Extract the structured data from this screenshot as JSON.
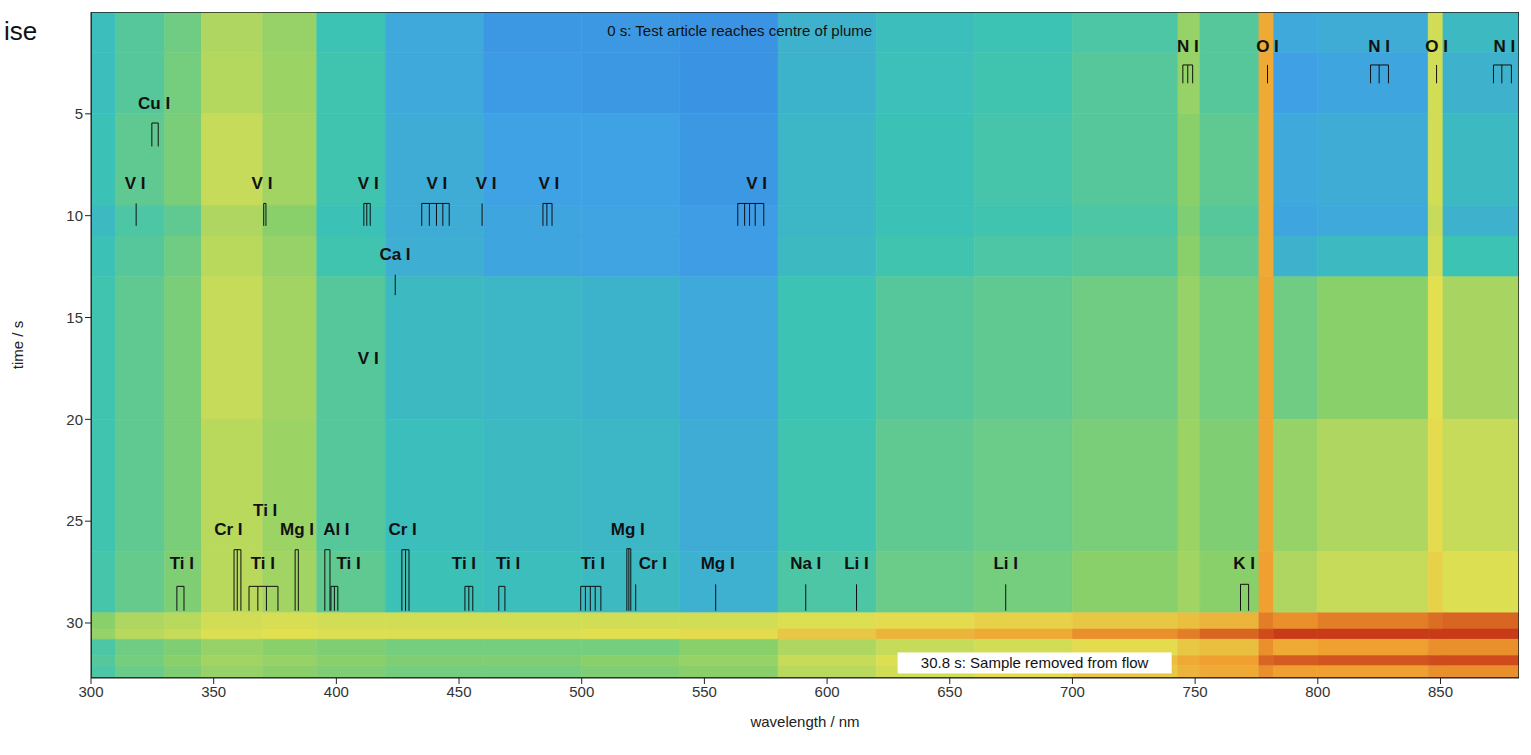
{
  "page_text": "ise",
  "chart_data": {
    "type": "heatmap",
    "x_label": "wavelength / nm",
    "y_label": "time / s",
    "xlim": [
      300,
      882
    ],
    "xticks": [
      300,
      350,
      400,
      450,
      500,
      550,
      600,
      650,
      700,
      750,
      800,
      850
    ],
    "ylim": [
      0,
      32.7
    ],
    "yticks": [
      5,
      10,
      15,
      20,
      25,
      30
    ],
    "color_range": [
      0,
      1
    ],
    "x_bins": [
      300,
      310,
      330,
      345,
      370,
      392,
      420,
      460,
      500,
      540,
      580,
      620,
      660,
      700,
      743,
      752,
      776,
      782,
      800,
      845,
      851,
      882
    ],
    "y_bins": [
      0,
      2,
      5,
      9.5,
      11,
      13,
      20,
      26.5,
      29.5,
      30.3,
      30.8,
      31.6,
      32.1,
      32.7
    ],
    "cells": [
      [
        0.42,
        0.5,
        0.55,
        0.66,
        0.62,
        0.45,
        0.3,
        0.22,
        0.22,
        0.2,
        0.35,
        0.42,
        0.45,
        0.48,
        0.62,
        0.5,
        0.86,
        0.3,
        0.32,
        0.72,
        0.4
      ],
      [
        0.42,
        0.5,
        0.56,
        0.67,
        0.63,
        0.46,
        0.3,
        0.23,
        0.22,
        0.2,
        0.36,
        0.43,
        0.46,
        0.5,
        0.62,
        0.5,
        0.86,
        0.25,
        0.28,
        0.72,
        0.35
      ],
      [
        0.44,
        0.52,
        0.57,
        0.7,
        0.64,
        0.46,
        0.32,
        0.26,
        0.26,
        0.22,
        0.38,
        0.44,
        0.47,
        0.5,
        0.6,
        0.52,
        0.86,
        0.3,
        0.32,
        0.72,
        0.4
      ],
      [
        0.4,
        0.48,
        0.52,
        0.66,
        0.6,
        0.44,
        0.32,
        0.28,
        0.27,
        0.24,
        0.38,
        0.44,
        0.46,
        0.48,
        0.58,
        0.5,
        0.86,
        0.28,
        0.3,
        0.7,
        0.35
      ],
      [
        0.44,
        0.5,
        0.55,
        0.68,
        0.62,
        0.46,
        0.33,
        0.28,
        0.27,
        0.24,
        0.4,
        0.46,
        0.48,
        0.5,
        0.6,
        0.52,
        0.86,
        0.35,
        0.4,
        0.72,
        0.45
      ],
      [
        0.46,
        0.52,
        0.57,
        0.7,
        0.64,
        0.5,
        0.4,
        0.38,
        0.36,
        0.3,
        0.45,
        0.5,
        0.52,
        0.55,
        0.62,
        0.56,
        0.87,
        0.55,
        0.6,
        0.75,
        0.65
      ],
      [
        0.46,
        0.52,
        0.57,
        0.68,
        0.63,
        0.5,
        0.42,
        0.4,
        0.38,
        0.32,
        0.46,
        0.52,
        0.54,
        0.57,
        0.63,
        0.58,
        0.87,
        0.62,
        0.66,
        0.76,
        0.7
      ],
      [
        0.47,
        0.53,
        0.58,
        0.68,
        0.64,
        0.52,
        0.44,
        0.42,
        0.4,
        0.34,
        0.48,
        0.54,
        0.56,
        0.6,
        0.64,
        0.6,
        0.88,
        0.66,
        0.7,
        0.78,
        0.74
      ],
      [
        0.6,
        0.66,
        0.68,
        0.72,
        0.73,
        0.72,
        0.72,
        0.72,
        0.72,
        0.72,
        0.74,
        0.76,
        0.78,
        0.8,
        0.82,
        0.84,
        0.92,
        0.9,
        0.92,
        0.94,
        0.95
      ],
      [
        0.62,
        0.68,
        0.7,
        0.74,
        0.75,
        0.74,
        0.74,
        0.74,
        0.75,
        0.76,
        0.8,
        0.84,
        0.86,
        0.9,
        0.92,
        0.95,
        0.98,
        1.0,
        1.0,
        1.0,
        1.0
      ],
      [
        0.48,
        0.55,
        0.58,
        0.62,
        0.6,
        0.58,
        0.56,
        0.56,
        0.56,
        0.6,
        0.66,
        0.7,
        0.72,
        0.76,
        0.8,
        0.82,
        0.9,
        0.86,
        0.88,
        0.9,
        0.9
      ],
      [
        0.5,
        0.56,
        0.6,
        0.64,
        0.62,
        0.6,
        0.58,
        0.58,
        0.6,
        0.62,
        0.7,
        0.74,
        0.78,
        0.82,
        0.86,
        0.88,
        0.95,
        0.96,
        0.97,
        0.98,
        0.98
      ],
      [
        0.48,
        0.54,
        0.58,
        0.62,
        0.6,
        0.58,
        0.56,
        0.56,
        0.58,
        0.6,
        0.68,
        0.72,
        0.76,
        0.8,
        0.84,
        0.86,
        0.9,
        0.88,
        0.88,
        0.9,
        0.9
      ]
    ],
    "annotations": [
      {
        "text": "0 s: Test article reaches centre of plume",
        "x": 564.4,
        "y": 0.9,
        "boxed": false
      },
      {
        "text": "30.8 s: Sample removed from flow",
        "x": 684.6,
        "y": 31.96,
        "boxed": true
      }
    ],
    "line_groups": [
      {
        "label": "N I",
        "x": 747,
        "label_time": 1.7,
        "lines": [
          745.0,
          747.0,
          749.0
        ],
        "span": [
          2.6,
          3.5
        ]
      },
      {
        "label": "O I",
        "x": 779.5,
        "label_time": 1.7,
        "lines": [
          779.5
        ],
        "span": [
          2.6,
          3.5
        ]
      },
      {
        "label": "N I",
        "x": 825,
        "label_time": 1.7,
        "lines": [
          821.5,
          825.0,
          828.8
        ],
        "span": [
          2.6,
          3.5
        ]
      },
      {
        "label": "O I",
        "x": 848.4,
        "label_time": 1.7,
        "lines": [
          848.4
        ],
        "span": [
          2.6,
          3.5
        ]
      },
      {
        "label": "N I",
        "x": 876,
        "label_time": 1.7,
        "lines": [
          871.6,
          875.0,
          878.9
        ],
        "span": [
          2.6,
          3.5
        ]
      },
      {
        "label": "Cu I",
        "x": 325.7,
        "label_time": 4.5,
        "lines": [
          324.8,
          327.4
        ],
        "span": [
          5.45,
          6.6
        ]
      },
      {
        "label": "V I",
        "x": 318,
        "label_time": 8.4,
        "lines": [
          318.4
        ],
        "span": [
          9.4,
          10.5
        ]
      },
      {
        "label": "V I",
        "x": 369.7,
        "label_time": 8.4,
        "lines": [
          370.4,
          371.3
        ],
        "span": [
          9.4,
          10.5
        ]
      },
      {
        "label": "V I",
        "x": 413,
        "label_time": 8.4,
        "lines": [
          411.2,
          412.4,
          413.8
        ],
        "span": [
          9.4,
          10.5
        ]
      },
      {
        "label": "V I",
        "x": 441,
        "label_time": 8.4,
        "lines": [
          434.8,
          437.9,
          440.8,
          443.4,
          446.0
        ],
        "span": [
          9.4,
          10.5
        ]
      },
      {
        "label": "V I",
        "x": 461,
        "label_time": 8.4,
        "lines": [
          459.4
        ],
        "span": [
          9.4,
          10.5
        ]
      },
      {
        "label": "V I",
        "x": 486.6,
        "label_time": 8.4,
        "lines": [
          484.2,
          485.8,
          487.9
        ],
        "span": [
          9.4,
          10.5
        ]
      },
      {
        "label": "V I",
        "x": 571.3,
        "label_time": 8.4,
        "lines": [
          563.6,
          566.4,
          568.4,
          570.7,
          574.2
        ],
        "span": [
          9.4,
          10.5
        ]
      },
      {
        "label": "Ca I",
        "x": 423.9,
        "label_time": 11.9,
        "lines": [
          424.0
        ],
        "span": [
          12.9,
          13.9
        ]
      },
      {
        "label": "V I",
        "x": 413,
        "label_time": 17.0,
        "lines": [],
        "span": [
          17.0,
          17.0
        ]
      },
      {
        "label": "Ti I",
        "x": 371,
        "label_time": 24.5,
        "lines": [],
        "span": [
          24.5,
          24.5
        ]
      },
      {
        "label": "Cr I",
        "x": 356,
        "label_time": 25.4,
        "lines": [
          358.3,
          359.6,
          361.1
        ],
        "span": [
          26.4,
          29.4
        ]
      },
      {
        "label": "Mg I",
        "x": 384,
        "label_time": 25.4,
        "lines": [
          383.2,
          384.5
        ],
        "span": [
          26.4,
          29.4
        ]
      },
      {
        "label": "Al I",
        "x": 400,
        "label_time": 25.4,
        "lines": [
          395.3,
          397.4
        ],
        "span": [
          26.4,
          29.4
        ]
      },
      {
        "label": "Cr I",
        "x": 427,
        "label_time": 25.4,
        "lines": [
          426.7,
          428.2,
          429.6
        ],
        "span": [
          26.4,
          29.4
        ]
      },
      {
        "label": "Mg I",
        "x": 518.8,
        "label_time": 25.4,
        "lines": [
          518.4,
          519.2,
          520.0
        ],
        "span": [
          26.35,
          29.4
        ]
      },
      {
        "label": "Ti I",
        "x": 337,
        "label_time": 27.1,
        "lines": [
          335.0,
          337.9
        ],
        "span": [
          28.2,
          29.4
        ]
      },
      {
        "label": "Ti I",
        "x": 370,
        "label_time": 27.1,
        "lines": [
          364.4,
          368.0,
          371.5,
          376.2
        ],
        "span": [
          28.2,
          29.4
        ]
      },
      {
        "label": "Ti I",
        "x": 405,
        "label_time": 27.1,
        "lines": [
          397.8,
          399.2,
          400.6
        ],
        "span": [
          28.2,
          29.4
        ]
      },
      {
        "label": "Ti I",
        "x": 452,
        "label_time": 27.1,
        "lines": [
          452.4,
          454.0,
          455.6
        ],
        "span": [
          28.2,
          29.4
        ]
      },
      {
        "label": "Ti I",
        "x": 470,
        "label_time": 27.1,
        "lines": [
          466.2,
          468.7
        ],
        "span": [
          28.2,
          29.4
        ]
      },
      {
        "label": "Ti I",
        "x": 504.5,
        "label_time": 27.1,
        "lines": [
          499.6,
          501.5,
          503.5,
          505.5,
          507.8
        ],
        "span": [
          28.2,
          29.4
        ]
      },
      {
        "label": "Cr I",
        "x": 529,
        "label_time": 27.1,
        "lines": [
          522.0
        ],
        "span": [
          28.1,
          29.4
        ]
      },
      {
        "label": "Mg I",
        "x": 555.4,
        "label_time": 27.1,
        "lines": [
          554.6
        ],
        "span": [
          28.1,
          29.4
        ]
      },
      {
        "label": "Na I",
        "x": 591.3,
        "label_time": 27.1,
        "lines": [
          591.3
        ],
        "span": [
          28.1,
          29.4
        ]
      },
      {
        "label": "Li I",
        "x": 612,
        "label_time": 27.1,
        "lines": [
          612.0
        ],
        "span": [
          28.1,
          29.4
        ]
      },
      {
        "label": "Li I",
        "x": 672.8,
        "label_time": 27.1,
        "lines": [
          672.8
        ],
        "span": [
          28.1,
          29.4
        ]
      },
      {
        "label": "K I",
        "x": 770,
        "label_time": 27.1,
        "lines": [
          768.5,
          771.8
        ],
        "span": [
          28.1,
          29.4
        ]
      }
    ]
  }
}
